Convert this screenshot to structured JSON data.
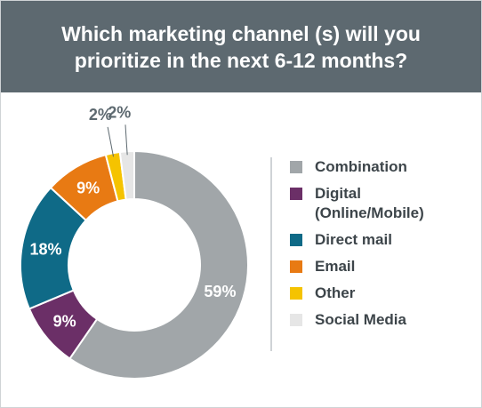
{
  "header": {
    "title": "Which marketing channel (s) will you\nprioritize in the next 6-12 months?"
  },
  "chart_data": {
    "type": "pie",
    "style": "donut",
    "categories": [
      "Combination",
      "Digital\n(Online/Mobile)",
      "Direct mail",
      "Email",
      "Other",
      "Social Media"
    ],
    "values": [
      59,
      9,
      18,
      9,
      2,
      2
    ],
    "value_labels": [
      "59%",
      "9%",
      "18%",
      "9%",
      "2%",
      "2%"
    ],
    "colors": [
      "#a1a6a9",
      "#6b2f67",
      "#0f6a87",
      "#e87a13",
      "#f5c300",
      "#e6e6e6"
    ],
    "legend_position": "right"
  }
}
